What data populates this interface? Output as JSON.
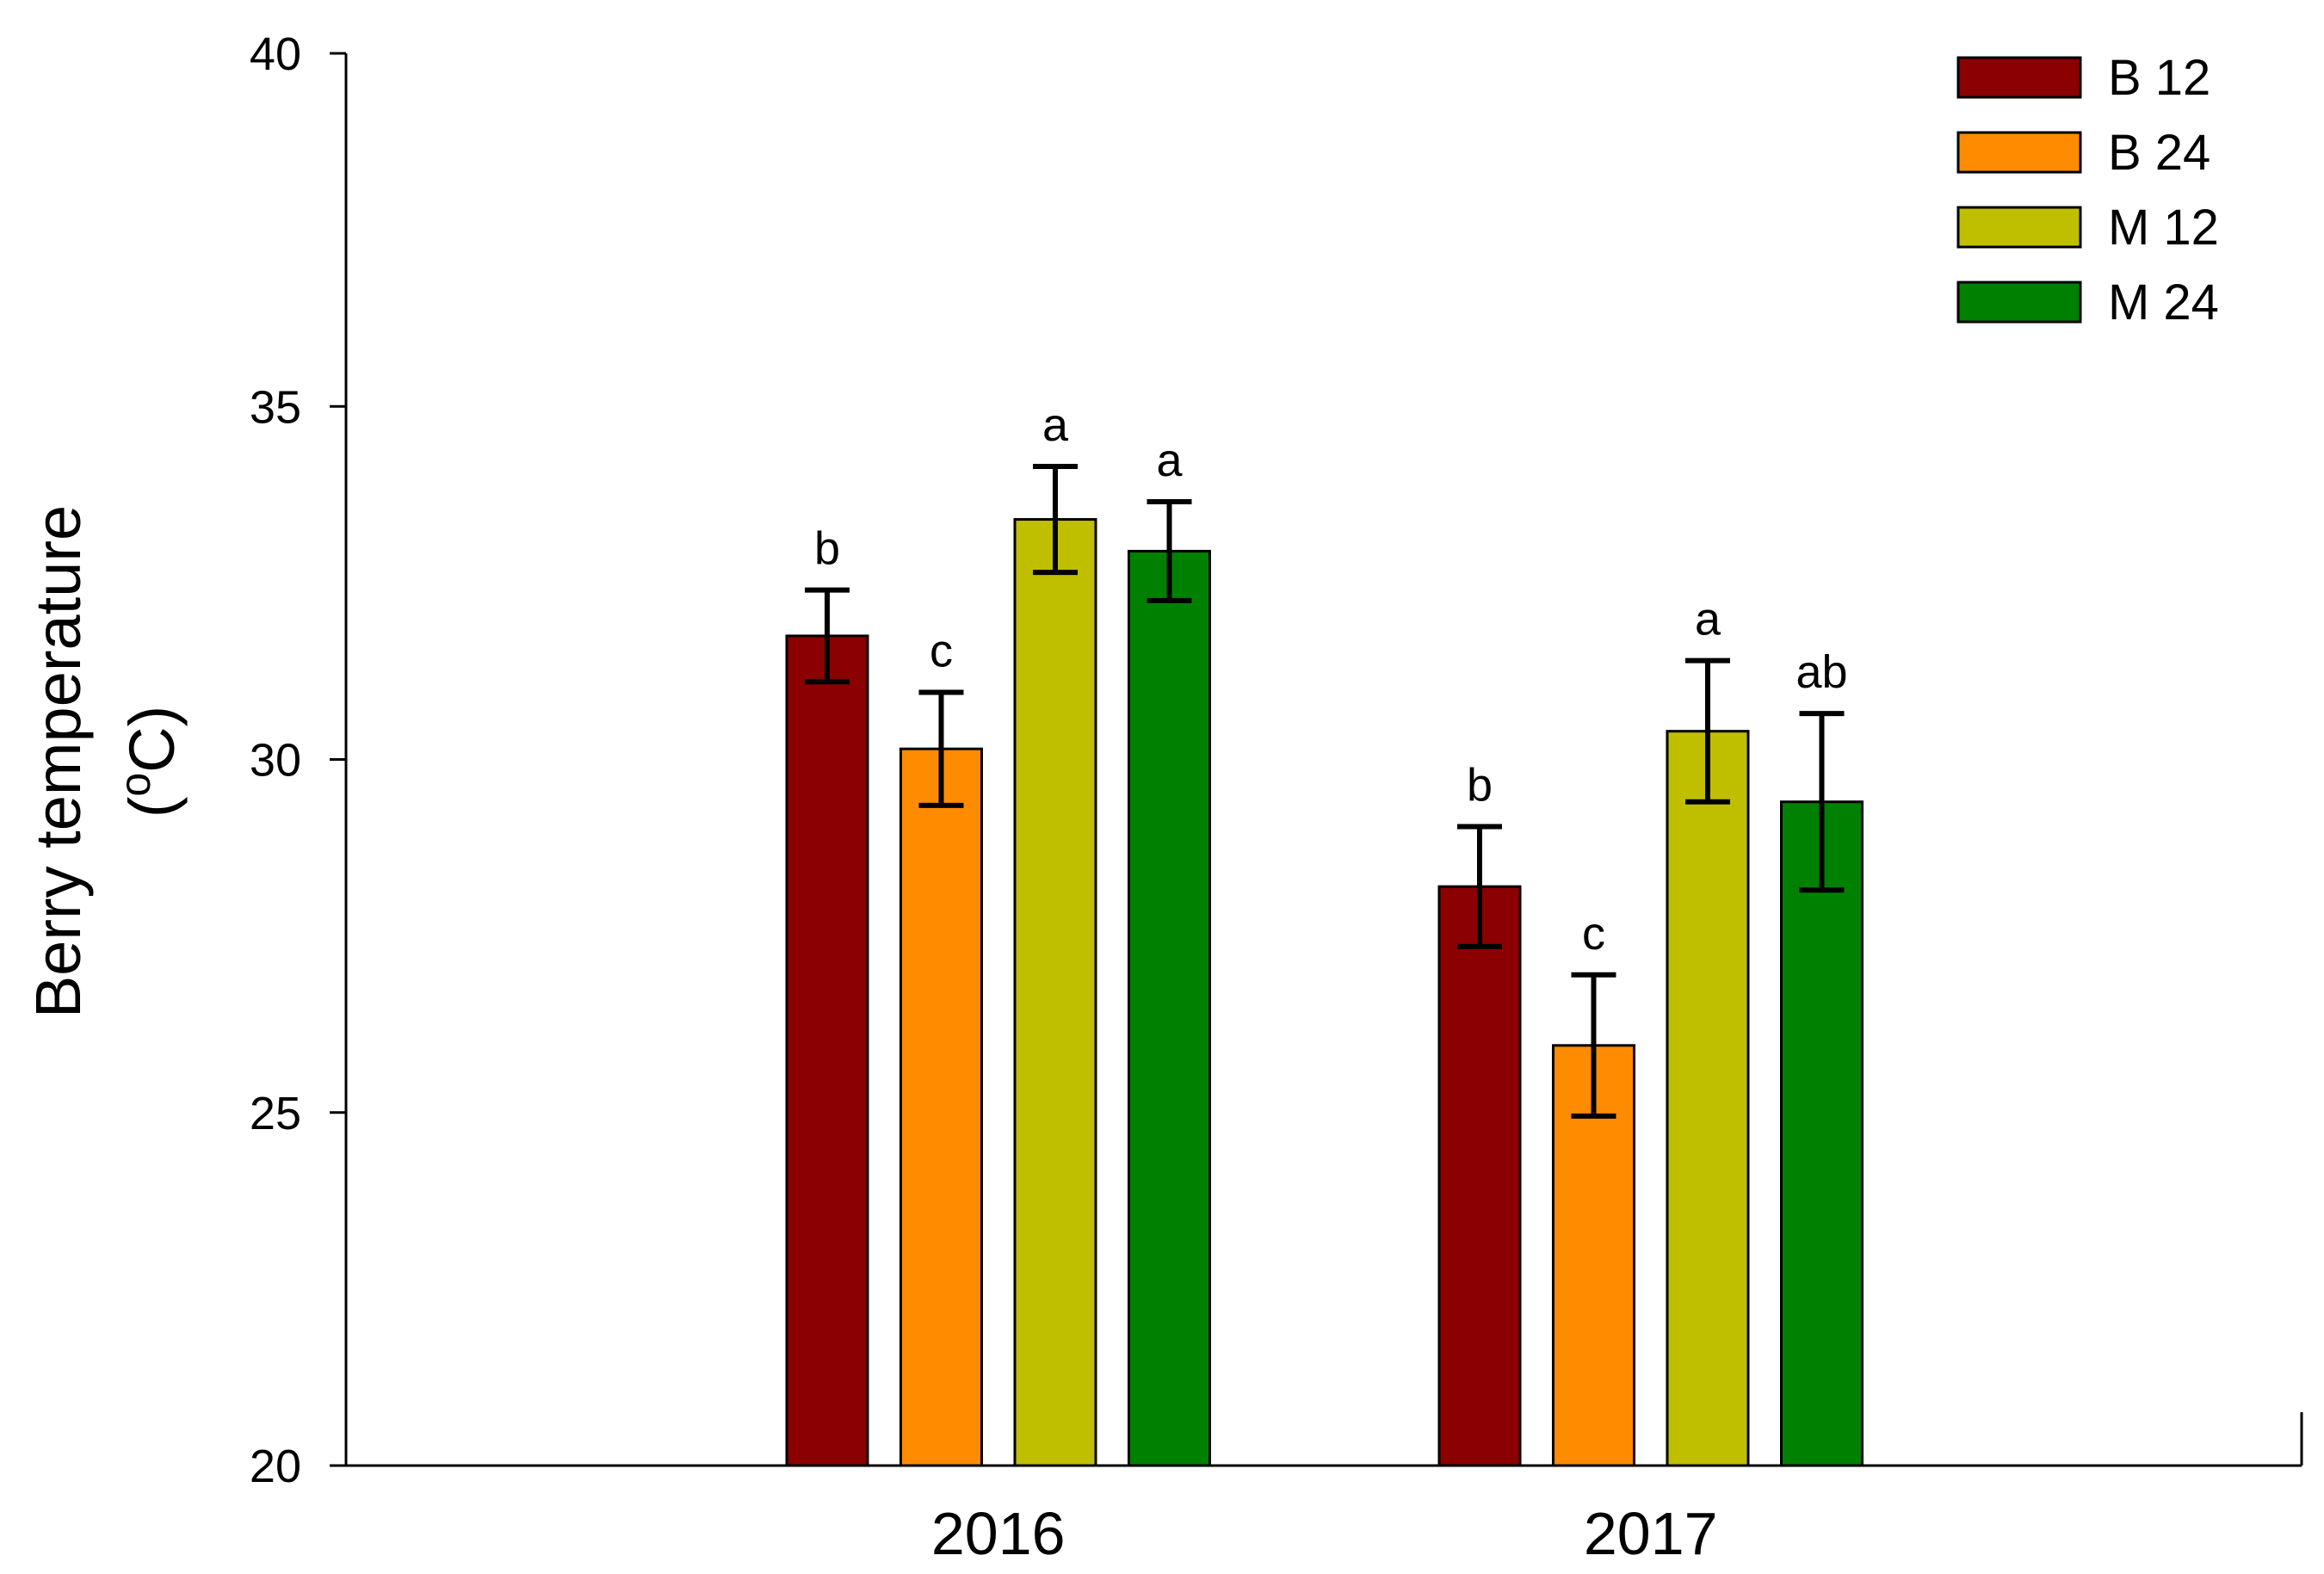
{
  "chart_data": {
    "type": "bar",
    "title": "",
    "xlabel": "",
    "ylabel": "Berry temperature",
    "ylabel_unit_pre": "(",
    "ylabel_unit_sup": "o",
    "ylabel_unit_post": "C)",
    "ylim": [
      20,
      40
    ],
    "yticks": [
      "20",
      "25",
      "30",
      "35",
      "40"
    ],
    "grid": false,
    "legend_position": "top-right",
    "categories": [
      "2016",
      "2017"
    ],
    "series": [
      {
        "name": "B 12",
        "color": "#8B0000",
        "values": [
          31.75,
          28.2
        ],
        "errors": [
          0.65,
          0.85
        ],
        "letters": [
          "b",
          "b"
        ]
      },
      {
        "name": "B 24",
        "color": "#FF8C00",
        "values": [
          30.15,
          25.95
        ],
        "errors": [
          0.8,
          1.0
        ],
        "letters": [
          "c",
          "c"
        ]
      },
      {
        "name": "M 12",
        "color": "#BFBF00",
        "values": [
          33.4,
          30.4
        ],
        "errors": [
          0.75,
          1.0
        ],
        "letters": [
          "a",
          "a"
        ]
      },
      {
        "name": "M 24",
        "color": "#008000",
        "values": [
          32.95,
          29.4
        ],
        "errors": [
          0.7,
          1.25
        ],
        "letters": [
          "a",
          "ab"
        ]
      }
    ]
  }
}
